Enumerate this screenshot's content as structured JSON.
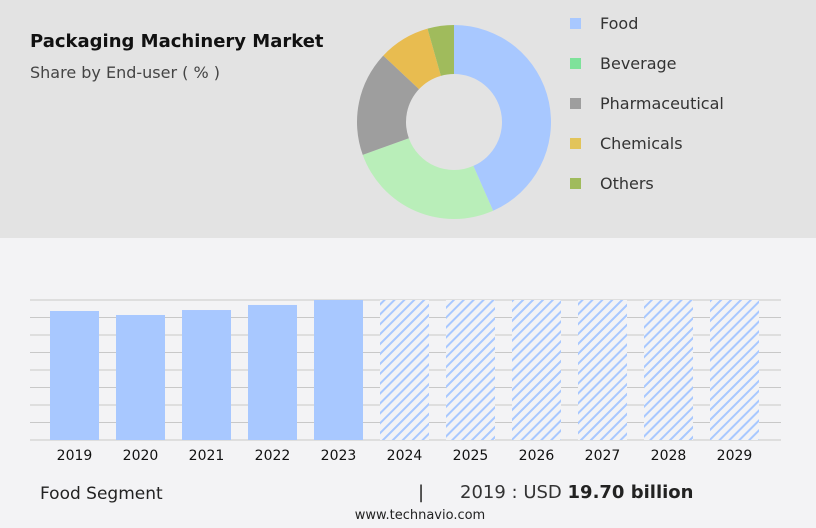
{
  "header": {
    "title": "Packaging Machinery Market",
    "subtitle": "Share by End-user ( % )"
  },
  "chart_data": [
    {
      "type": "pie",
      "donut": true,
      "categories": [
        "Food",
        "Beverage",
        "Pharmaceutical",
        "Chemicals",
        "Others"
      ],
      "values": [
        43.4,
        26.1,
        17.5,
        8.6,
        4.4
      ],
      "slice_colors": [
        "#a8c8ff",
        "#b9eeb9",
        "#9e9e9e",
        "#e8bc50",
        "#a0bb5c"
      ],
      "legend_colors": [
        "#a8c8ff",
        "#7ee29a",
        "#9e9e9e",
        "#e2c45a",
        "#a0bb5c"
      ],
      "legend_placement": "right"
    },
    {
      "type": "bar",
      "categories": [
        "2019",
        "2020",
        "2021",
        "2022",
        "2023",
        "2024",
        "2025",
        "2026",
        "2027",
        "2028",
        "2029"
      ],
      "values": [
        19.7,
        19.09,
        19.85,
        20.62,
        21.38,
        21.38,
        21.38,
        21.38,
        21.38,
        21.38,
        21.38
      ],
      "forecast_from": "2024",
      "bar_color": "#a8c8ff",
      "grid": true,
      "ylim": [
        0,
        21.38
      ]
    }
  ],
  "footer": {
    "segment": "Food Segment",
    "separator": "|",
    "year_label": "2019 : USD",
    "value": "19.70 billion",
    "site": "www.technavio.com"
  }
}
